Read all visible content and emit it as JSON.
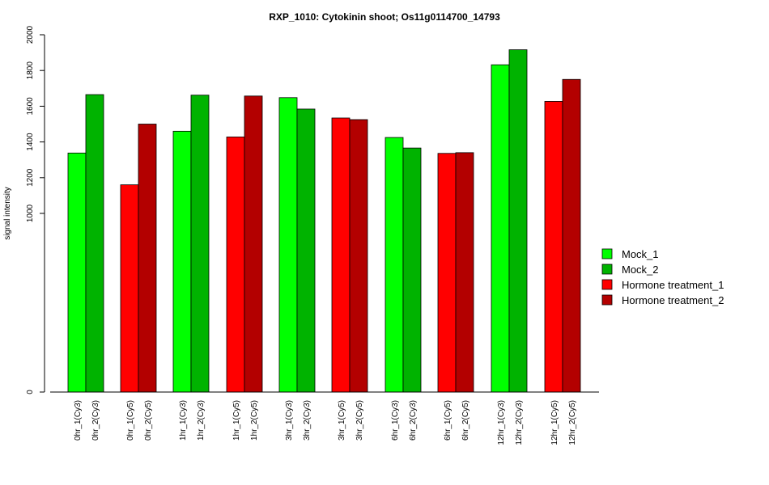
{
  "chart_data": {
    "type": "bar",
    "title": "RXP_1010: Cytokinin shoot; Os11g0114700_14793",
    "ylabel": "signal intensity",
    "xlabel": "",
    "ylim": [
      0,
      2000
    ],
    "yticks": [
      0,
      1000,
      1200,
      1400,
      1600,
      1800,
      2000
    ],
    "categories": [
      "0hr_1(Cy3)",
      "0hr_2(Cy3)",
      "0hr_1(Cy5)",
      "0hr_2(Cy5)",
      "1hr_1(Cy3)",
      "1hr_2(Cy3)",
      "1hr_1(Cy5)",
      "1hr_2(Cy5)",
      "3hr_1(Cy3)",
      "3hr_2(Cy3)",
      "3hr_1(Cy5)",
      "3hr_2(Cy5)",
      "6hr_1(Cy3)",
      "6hr_2(Cy3)",
      "6hr_1(Cy5)",
      "6hr_2(Cy5)",
      "12hr_1(Cy3)",
      "12hr_2(Cy3)",
      "12hr_1(Cy5)",
      "12hr_2(Cy5)"
    ],
    "values": [
      1338,
      1665,
      1160,
      1500,
      1460,
      1662,
      1428,
      1657,
      1648,
      1584,
      1534,
      1525,
      1425,
      1366,
      1336,
      1340,
      1832,
      1916,
      1627,
      1750
    ],
    "bar_series_index": [
      0,
      1,
      2,
      3,
      0,
      1,
      2,
      3,
      0,
      1,
      2,
      3,
      0,
      1,
      2,
      3,
      0,
      1,
      2,
      3
    ],
    "legend": [
      {
        "name": "Mock_1",
        "color": "#00ff00"
      },
      {
        "name": "Mock_2",
        "color": "#00b300"
      },
      {
        "name": "Hormone treatment_1",
        "color": "#ff0000"
      },
      {
        "name": "Hormone treatment_2",
        "color": "#b30000"
      }
    ],
    "legend_position": "right",
    "grid": false
  }
}
